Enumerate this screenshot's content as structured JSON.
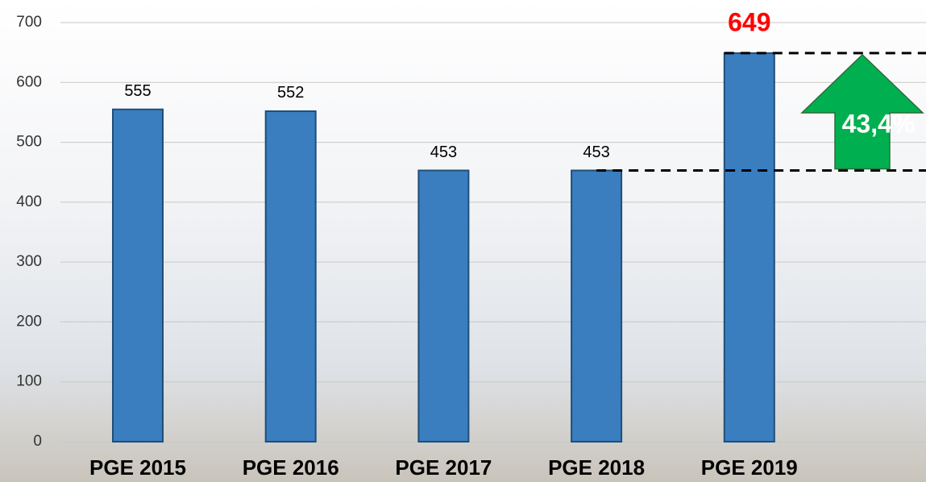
{
  "chart_data": {
    "type": "bar",
    "categories": [
      "PGE 2015",
      "PGE 2016",
      "PGE 2017",
      "PGE 2018",
      "PGE 2019"
    ],
    "values": [
      555,
      552,
      453,
      453,
      649
    ],
    "color": "#3a7ebf",
    "value_label_colors": [
      "#000000",
      "#000000",
      "#000000",
      "#000000",
      "#ff0000"
    ],
    "ylim": [
      0,
      700
    ],
    "yticks": [
      0,
      100,
      200,
      300,
      400,
      500,
      600,
      700
    ],
    "grid": true,
    "annotation": {
      "text": "43,4%",
      "color": "#00b050"
    }
  }
}
